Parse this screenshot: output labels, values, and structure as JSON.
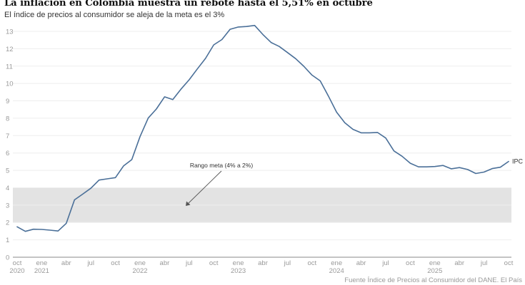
{
  "header": {
    "title": "La inflación en Colombia muestra un rebote hasta el 5,51% en octubre",
    "subtitle": "El índice de precios al consumidor se aleja de la meta es el 3%"
  },
  "footer": {
    "source": "Fuente Índice de Precios al Consumidor del DANE. El País"
  },
  "colors": {
    "line": "#4a6f98",
    "band": "#e3e3e3",
    "grid": "#eeeeee",
    "axis": "#888888",
    "text": "#9a9a9a"
  },
  "chart_data": {
    "type": "line",
    "title": "La inflación en Colombia muestra un rebote hasta el 5,51% en octubre",
    "subtitle": "El índice de precios al consumidor se aleja de la meta es el 3%",
    "xlabel": "",
    "ylabel": "",
    "ylim": [
      0,
      13
    ],
    "yticks": [
      0,
      1,
      2,
      3,
      4,
      5,
      6,
      7,
      8,
      9,
      10,
      11,
      12,
      13
    ],
    "grid": true,
    "x_start": "2020-10",
    "x_end": "2025-10",
    "xticks": [
      {
        "month": 0,
        "label": "oct",
        "year": "2020"
      },
      {
        "month": 3,
        "label": "ene",
        "year": "2021"
      },
      {
        "month": 6,
        "label": "abr",
        "year": ""
      },
      {
        "month": 9,
        "label": "jul",
        "year": ""
      },
      {
        "month": 12,
        "label": "oct",
        "year": ""
      },
      {
        "month": 15,
        "label": "ene",
        "year": "2022"
      },
      {
        "month": 18,
        "label": "abr",
        "year": ""
      },
      {
        "month": 21,
        "label": "jul",
        "year": ""
      },
      {
        "month": 24,
        "label": "oct",
        "year": ""
      },
      {
        "month": 27,
        "label": "ene",
        "year": "2023"
      },
      {
        "month": 30,
        "label": "abr",
        "year": ""
      },
      {
        "month": 33,
        "label": "jul",
        "year": ""
      },
      {
        "month": 36,
        "label": "oct",
        "year": ""
      },
      {
        "month": 39,
        "label": "ene",
        "year": "2024"
      },
      {
        "month": 42,
        "label": "abr",
        "year": ""
      },
      {
        "month": 45,
        "label": "jul",
        "year": ""
      },
      {
        "month": 48,
        "label": "oct",
        "year": ""
      },
      {
        "month": 51,
        "label": "ene",
        "year": "2025"
      },
      {
        "month": 54,
        "label": "abr",
        "year": ""
      },
      {
        "month": 57,
        "label": "jul",
        "year": ""
      },
      {
        "month": 60,
        "label": "oct",
        "year": ""
      }
    ],
    "band": {
      "from": 2,
      "to": 4,
      "label": "Rango meta (4% a 2%)"
    },
    "series": [
      {
        "name": "IPC",
        "values": [
          1.75,
          1.49,
          1.61,
          1.6,
          1.56,
          1.51,
          1.95,
          3.3,
          3.63,
          3.97,
          4.44,
          4.51,
          4.58,
          5.26,
          5.62,
          6.94,
          8.01,
          8.53,
          9.23,
          9.07,
          9.67,
          10.21,
          10.84,
          11.44,
          12.22,
          12.53,
          13.12,
          13.25,
          13.28,
          13.34,
          12.82,
          12.36,
          12.13,
          11.78,
          11.43,
          10.99,
          10.48,
          10.15,
          9.28,
          8.35,
          7.74,
          7.36,
          7.16,
          7.16,
          7.18,
          6.86,
          6.12,
          5.81,
          5.41,
          5.2,
          5.2,
          5.22,
          5.28,
          5.09,
          5.16,
          5.05,
          4.82,
          4.9,
          5.1,
          5.18,
          5.51
        ]
      }
    ],
    "legend": "end-label-right"
  }
}
